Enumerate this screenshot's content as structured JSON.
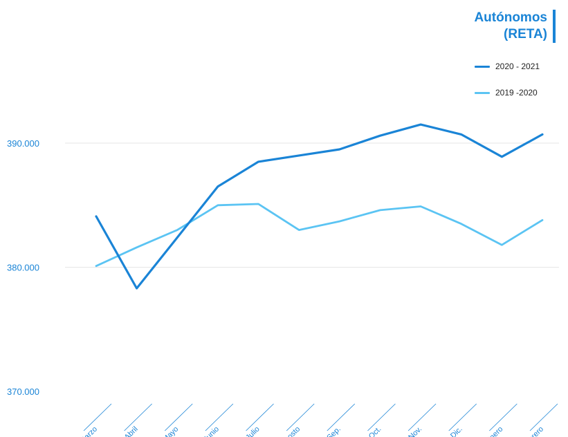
{
  "title_line1": "Autónomos",
  "title_line2": "(RETA)",
  "colors": {
    "accent": "#1a84d6",
    "series1": "#1a84d6",
    "series2": "#5bc4f3",
    "grid": "#e6e6e6",
    "ticks": "#1a84d6"
  },
  "chart_data": {
    "type": "line",
    "categories": [
      "Marzo",
      "Abril",
      "Mayo",
      "Junio",
      "Julio",
      "Agosto",
      "Sep.",
      "Oct.",
      "Nov.",
      "Dic.",
      "Enero",
      "Febrero"
    ],
    "series": [
      {
        "name": "2020 - 2021",
        "values": [
          384100,
          378300,
          382400,
          386500,
          388500,
          389000,
          389500,
          390600,
          391500,
          390700,
          388900,
          390700
        ]
      },
      {
        "name": "2019 -2020",
        "values": [
          380100,
          381600,
          383000,
          385000,
          385100,
          383000,
          383700,
          384600,
          384900,
          383500,
          381800,
          383800
        ]
      }
    ],
    "y_ticks": [
      {
        "value": 370000,
        "label": "370.000"
      },
      {
        "value": 380000,
        "label": "380.000"
      },
      {
        "value": 390000,
        "label": "390.000"
      }
    ],
    "ylim": [
      370000,
      400000
    ],
    "grid": true,
    "legend_position": "top-right"
  }
}
